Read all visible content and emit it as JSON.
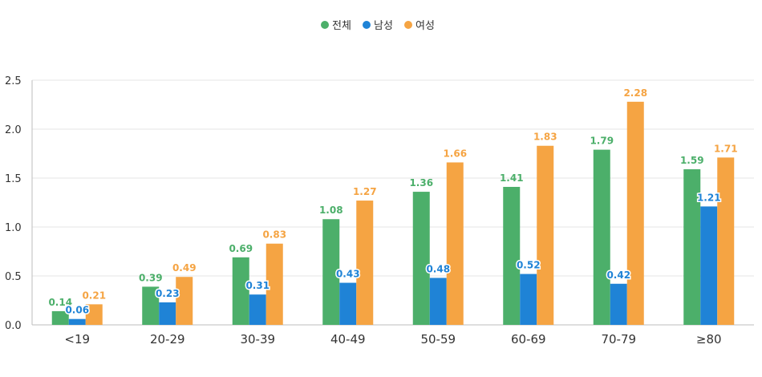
{
  "chart_data": {
    "type": "bar",
    "categories": [
      "<19",
      "20-29",
      "30-39",
      "40-49",
      "50-59",
      "60-69",
      "70-79",
      "≥80"
    ],
    "series": [
      {
        "name": "전체",
        "color": "#4caf6a",
        "values": [
          0.14,
          0.39,
          0.69,
          1.08,
          1.36,
          1.41,
          1.79,
          1.59
        ]
      },
      {
        "name": "남성",
        "color": "#1f83d6",
        "values": [
          0.06,
          0.23,
          0.31,
          0.43,
          0.48,
          0.52,
          0.42,
          1.21
        ]
      },
      {
        "name": "여성",
        "color": "#f5a443",
        "values": [
          0.21,
          0.49,
          0.83,
          1.27,
          1.66,
          1.83,
          2.28,
          1.71
        ]
      }
    ],
    "yticks": [
      "0.0",
      "0.5",
      "1.0",
      "1.5",
      "2.0",
      "2.5"
    ],
    "ylim": [
      0,
      2.5
    ],
    "grid": true,
    "legend_position": "top-center",
    "title": "",
    "xlabel": "",
    "ylabel": ""
  }
}
